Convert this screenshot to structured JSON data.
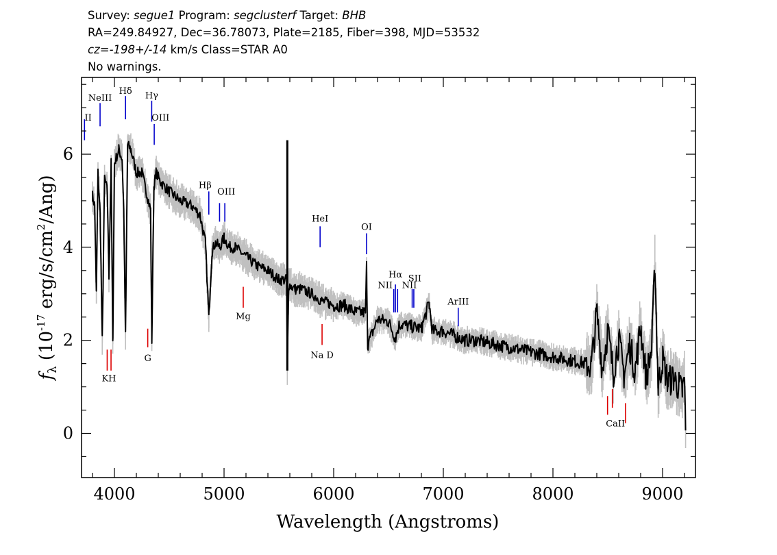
{
  "header": {
    "survey_label": "Survey:",
    "survey": "segue1",
    "program_label": "Program:",
    "program": "segclusterf",
    "target_label": "Target:",
    "target": "BHB",
    "line2": "RA=249.84927, Dec=36.78073, Plate=2185, Fiber=398, MJD=53532",
    "cz_label": "cz=",
    "cz_value": "-198+/-14",
    "cz_unit_class": "km/s Class=STAR A0",
    "line4": "No warnings."
  },
  "chart_data": {
    "type": "line",
    "xlabel": "Wavelength (Angstroms)",
    "ylabel_prefix": "f",
    "ylabel_sub": "λ",
    "ylabel_unit_open": "(10",
    "ylabel_exp": "-17",
    "ylabel_unit_mid": "erg/s/cm",
    "ylabel_exp2": "2",
    "ylabel_unit_close": "/Ang)",
    "xlim": [
      3700,
      9300
    ],
    "ylim": [
      -0.95,
      7.65
    ],
    "x_ticks": [
      4000,
      5000,
      6000,
      7000,
      8000,
      9000
    ],
    "x_tick_labels": [
      "4000",
      "5000",
      "6000",
      "7000",
      "8000",
      "9000"
    ],
    "y_ticks": [
      0,
      2,
      4,
      6
    ],
    "y_tick_labels": [
      "0",
      "2",
      "4",
      "6"
    ],
    "series": [
      {
        "style": "smoothed",
        "color": "#000000",
        "x": [
          3800,
          3820,
          3835,
          3850,
          3870,
          3889,
          3910,
          3935,
          3950,
          3970,
          3985,
          4000,
          4040,
          4070,
          4085,
          4101,
          4120,
          4150,
          4200,
          4250,
          4300,
          4330,
          4341,
          4360,
          4380,
          4420,
          4500,
          4600,
          4700,
          4780,
          4830,
          4861,
          4890,
          4920,
          4960,
          5000,
          5050,
          5100,
          5200,
          5300,
          5400,
          5500,
          5570,
          5577,
          5590,
          5650,
          5700,
          5800,
          5890,
          5950,
          6000,
          6100,
          6200,
          6290,
          6300,
          6310,
          6400,
          6500,
          6563,
          6600,
          6700,
          6800,
          6870,
          6900,
          7000,
          7100,
          7200,
          7300,
          7400,
          7500,
          7600,
          7700,
          7800,
          7900,
          8000,
          8100,
          8200,
          8300,
          8350,
          8400,
          8450,
          8500,
          8550,
          8600,
          8650,
          8700,
          8750,
          8800,
          8850,
          8900,
          8930,
          8960,
          9000,
          9050,
          9100,
          9150,
          9180,
          9200,
          9210
        ],
        "y": [
          5.1,
          4.9,
          3.0,
          5.6,
          4.7,
          2.0,
          5.5,
          5.2,
          3.4,
          5.8,
          1.9,
          5.8,
          6.1,
          5.9,
          4.8,
          2.1,
          6.2,
          6.1,
          5.6,
          5.6,
          5.1,
          4.8,
          2.0,
          5.3,
          5.6,
          5.4,
          5.2,
          5.0,
          4.9,
          4.7,
          4.1,
          2.5,
          3.9,
          4.1,
          4.0,
          4.2,
          4.0,
          4.0,
          3.8,
          3.6,
          3.5,
          3.3,
          3.3,
          1.4,
          3.2,
          3.1,
          3.1,
          3.0,
          2.85,
          2.8,
          2.75,
          2.75,
          2.6,
          2.6,
          3.6,
          1.9,
          2.45,
          2.4,
          2.05,
          2.35,
          2.3,
          2.25,
          2.8,
          2.2,
          2.2,
          2.1,
          2.0,
          2.0,
          1.95,
          1.9,
          1.85,
          1.8,
          1.75,
          1.7,
          1.65,
          1.6,
          1.55,
          1.5,
          1.45,
          2.6,
          1.4,
          2.2,
          1.3,
          2.0,
          1.25,
          1.9,
          1.35,
          2.3,
          1.2,
          1.8,
          3.6,
          1.0,
          1.6,
          1.1,
          1.2,
          1.0,
          0.9,
          1.1,
          0.0
        ]
      }
    ],
    "annotations": {
      "emission": [
        {
          "label": "OII",
          "x": 3727,
          "y_text": 6.75
        },
        {
          "label": "NeIII",
          "x": 3869,
          "y_text": 7.1
        },
        {
          "label": "Hδ",
          "x": 4101,
          "y_text": 7.25
        },
        {
          "label": "Hγ",
          "x": 4340,
          "y_text": 7.15
        },
        {
          "label": "OIII",
          "x": 4363,
          "y_text": 6.75
        },
        {
          "label": "Hβ",
          "x": 4861,
          "y_text": 5.2
        },
        {
          "label": "OIII",
          "x": 4959,
          "y_text": 5.1
        },
        {
          "label": "OIII",
          "x": 5007,
          "y_text": 5.1
        },
        {
          "label": "HeI",
          "x": 5876,
          "y_text": 4.5
        },
        {
          "label": "OI",
          "x": 6300,
          "y_text": 4.3
        },
        {
          "label": "NII",
          "x": 6548,
          "y_text": 3.1
        },
        {
          "label": "Hα",
          "x": 6563,
          "y_text": 3.3
        },
        {
          "label": "NII",
          "x": 6583,
          "y_text": 3.1
        },
        {
          "label": "SII",
          "x": 6716,
          "y_text": 3.2
        },
        {
          "label": "SII",
          "x": 6731,
          "y_text": 3.2
        },
        {
          "label": "ArIII",
          "x": 7136,
          "y_text": 2.7
        }
      ],
      "absorption": [
        {
          "label": "K",
          "x": 3934
        },
        {
          "label": "H",
          "x": 3969
        },
        {
          "label": "G",
          "x": 4304
        },
        {
          "label": "Mg",
          "x": 5175
        },
        {
          "label": "Na D",
          "x": 5894
        },
        {
          "label": "CaII",
          "x": 8498
        },
        {
          "label": "CaII",
          "x": 8542
        },
        {
          "label": "CaII",
          "x": 8662
        }
      ],
      "emission_labels_shown": [
        "II",
        "NeIII",
        "Hδ",
        "Hγ",
        "OIII",
        "Hβ",
        "OIII",
        "HeI",
        "OI",
        "NII",
        "Hα",
        "NII",
        "SII",
        "ArIII"
      ],
      "absorption_labels_shown": [
        "KH",
        "G",
        "Mg",
        "Na D",
        "CaII"
      ]
    },
    "colors": {
      "spectrum": "#000000",
      "noise_band": "#c0c0c0",
      "emission_lines": "#0000cc",
      "absorption_lines": "#dd0000"
    },
    "grid": false
  }
}
